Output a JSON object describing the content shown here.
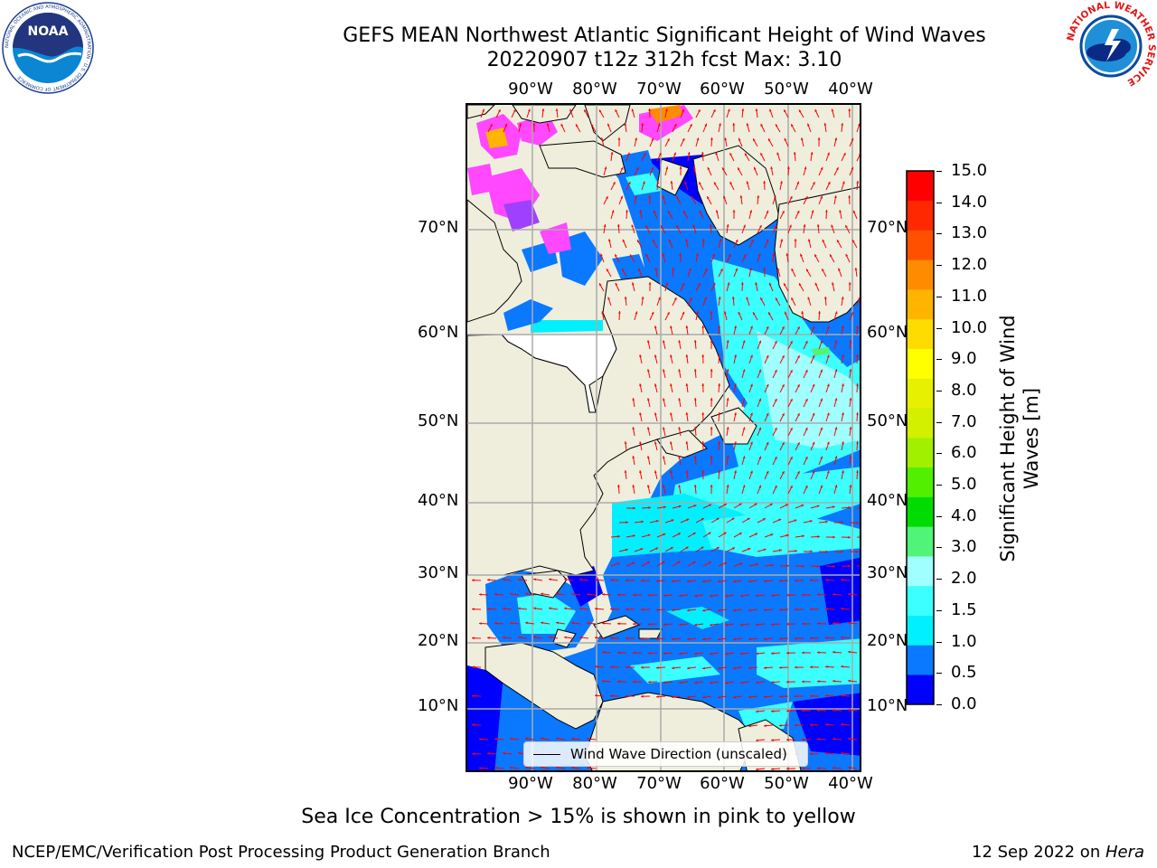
{
  "header": {
    "title": "GEFS MEAN Northwest Atlantic Significant Height of Wind Waves",
    "subtitle": "20220907 t12z 312h fcst   Max: 3.10"
  },
  "logos": {
    "left": {
      "name": "noaa-logo",
      "text": "NOAA",
      "ring": "NATIONAL OCEANIC AND ATMOSPHERIC ADMINISTRATION · U.S. DEPARTMENT OF COMMERCE"
    },
    "right": {
      "name": "nws-logo",
      "ring": "NATIONAL WEATHER SERVICE"
    }
  },
  "map": {
    "lon_labels": [
      "90°W",
      "80°W",
      "70°W",
      "60°W",
      "50°W",
      "40°W"
    ],
    "lat_labels": [
      "70°N",
      "60°N",
      "50°N",
      "40°N",
      "30°N",
      "20°N",
      "10°N"
    ],
    "legend": "Wind Wave Direction (unscaled)",
    "arrow_color": "#ff0000",
    "land_color": "#efeedd"
  },
  "colorbar": {
    "label": "Significant Height of Wind Waves [m]",
    "ticks": [
      "0.0",
      "0.5",
      "1.0",
      "1.5",
      "2.0",
      "3.0",
      "4.0",
      "5.0",
      "6.0",
      "7.0",
      "8.0",
      "9.0",
      "10.0",
      "11.0",
      "12.0",
      "13.0",
      "14.0",
      "15.0"
    ],
    "colors": [
      "#0000ff",
      "#0a78ff",
      "#00f0ff",
      "#3cffff",
      "#a0ffff",
      "#50f478",
      "#00dc00",
      "#50f000",
      "#a0f000",
      "#d2f000",
      "#e6f000",
      "#ffff00",
      "#ffdc00",
      "#ffb400",
      "#ff8c00",
      "#ff5000",
      "#ff2800",
      "#ff0000"
    ]
  },
  "footer": {
    "ice_note": "Sea Ice Concentration > 15% is shown in pink to yellow",
    "credit_left": "NCEP/EMC/Verification Post Processing Product Generation Branch",
    "credit_date": "12 Sep 2022 on ",
    "credit_machine": "Hera"
  }
}
